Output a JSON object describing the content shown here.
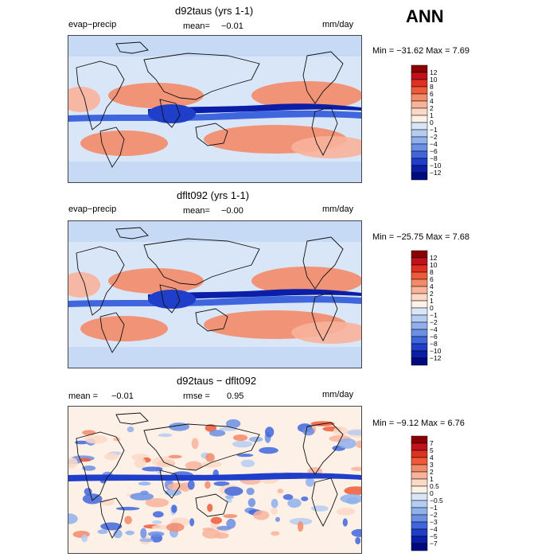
{
  "header": {
    "season": "ANN"
  },
  "chart_data": [
    {
      "type": "heatmap",
      "title": "d92taus (yrs 1-1)",
      "left_label": "evap−precip",
      "mean_label": "mean=",
      "mean_value": "−0.01",
      "units": "mm/day",
      "min_max": "Min = −31.62  Max =    7.69",
      "colorbar_levels": [
        "12",
        "10",
        "8",
        "6",
        "4",
        "2",
        "1",
        "0",
        "−1",
        "−2",
        "−4",
        "−6",
        "−8",
        "−10",
        "−12"
      ],
      "colorbar_colors": [
        "#8b0000",
        "#c1121c",
        "#e03020",
        "#ef5a3a",
        "#f38a68",
        "#f8b39a",
        "#fcd9c7",
        "#fdf0e6",
        "#d9e6f8",
        "#b6cdf2",
        "#8fb0ec",
        "#6b8fe4",
        "#3f66dc",
        "#1f3ec9",
        "#0a1ea8",
        "#000a80"
      ]
    },
    {
      "type": "heatmap",
      "title": "dflt092 (yrs 1-1)",
      "left_label": "evap−precip",
      "mean_label": "mean=",
      "mean_value": "−0.00",
      "units": "mm/day",
      "min_max": "Min = −25.75  Max =    7.68",
      "colorbar_levels": [
        "12",
        "10",
        "8",
        "6",
        "4",
        "2",
        "1",
        "0",
        "−1",
        "−2",
        "−4",
        "−6",
        "−8",
        "−10",
        "−12"
      ],
      "colorbar_colors": [
        "#8b0000",
        "#c1121c",
        "#e03020",
        "#ef5a3a",
        "#f38a68",
        "#f8b39a",
        "#fcd9c7",
        "#fdf0e6",
        "#d9e6f8",
        "#b6cdf2",
        "#8fb0ec",
        "#6b8fe4",
        "#3f66dc",
        "#1f3ec9",
        "#0a1ea8",
        "#000a80"
      ]
    },
    {
      "type": "heatmap",
      "title": "d92taus − dflt092",
      "left_label": "mean =",
      "mean_value": "−0.01",
      "rmse_label": "rmse =",
      "rmse_value": "0.95",
      "units": "mm/day",
      "min_max": "Min =  −9.12  Max =    6.76",
      "colorbar_levels": [
        "7",
        "5",
        "4",
        "3",
        "2",
        "1",
        "0.5",
        "0",
        "−0.5",
        "−1",
        "−2",
        "−3",
        "−4",
        "−5",
        "−7"
      ],
      "colorbar_colors": [
        "#8b0000",
        "#c1121c",
        "#e03020",
        "#ef5a3a",
        "#f38a68",
        "#f8b39a",
        "#fcd9c7",
        "#fdf0e6",
        "#d9e6f8",
        "#b6cdf2",
        "#8fb0ec",
        "#6b8fe4",
        "#3f66dc",
        "#1f3ec9",
        "#0a1ea8",
        "#000a80"
      ]
    }
  ]
}
